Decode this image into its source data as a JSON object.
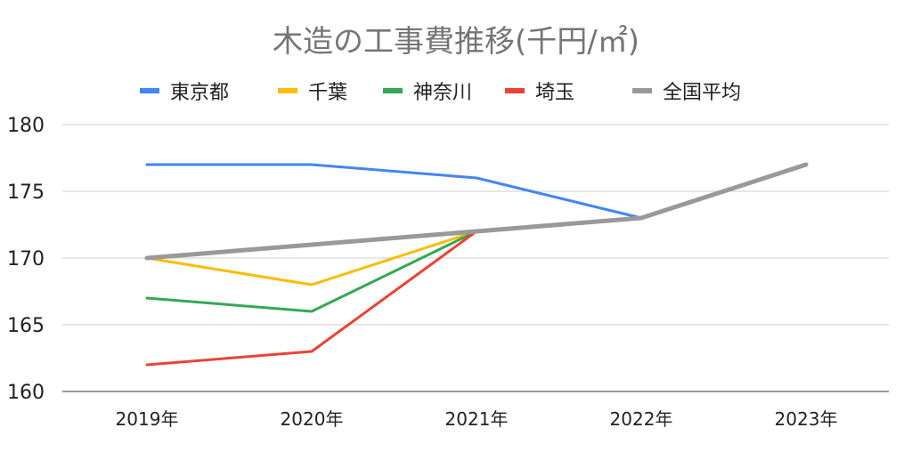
{
  "chart_data": {
    "type": "line",
    "title": "木造の工事費推移(千円/㎡)",
    "categories": [
      "2019年",
      "2020年",
      "2021年",
      "2022年",
      "2023年"
    ],
    "ylim": [
      160,
      180
    ],
    "yticks": [
      "160",
      "165",
      "170",
      "175",
      "180"
    ],
    "grid": true,
    "legend_position": "top",
    "series": [
      {
        "name": "東京都",
        "color": "#4285f4",
        "values": [
          177,
          177,
          176,
          173,
          177
        ]
      },
      {
        "name": "千葉",
        "color": "#fbbc04",
        "values": [
          170,
          168,
          172,
          173,
          177
        ]
      },
      {
        "name": "神奈川",
        "color": "#34a853",
        "values": [
          167,
          166,
          172,
          173,
          177
        ]
      },
      {
        "name": "埼玉",
        "color": "#ea4335",
        "values": [
          162,
          163,
          172,
          173,
          177
        ]
      },
      {
        "name": "全国平均",
        "color": "#999999",
        "values": [
          170,
          171,
          172,
          173,
          177
        ]
      }
    ]
  }
}
